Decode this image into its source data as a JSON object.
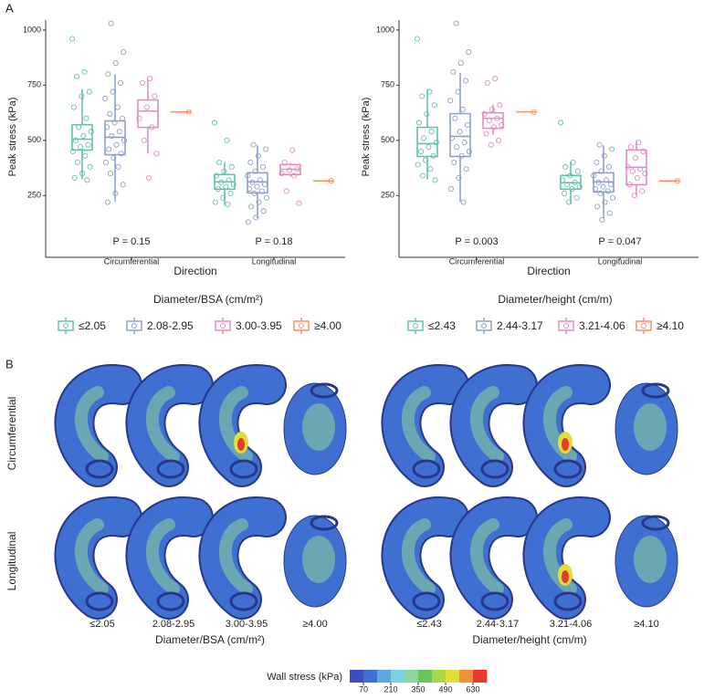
{
  "chart_data": [
    {
      "type": "box",
      "ylabel": "Peak stress (kPa)",
      "xlabel": "Direction",
      "legend_title": "Diameter/BSA (cm/m²)",
      "categories": [
        "Circumferential",
        "Longitudinal"
      ],
      "annotations": [
        "P = 0.15",
        "P = 0.18"
      ],
      "ylim": [
        -30,
        1045
      ],
      "yticks": [
        250,
        500,
        750,
        1000
      ],
      "series": [
        {
          "name": "≤2.05",
          "color": "#66c2a5",
          "boxes": [
            [
              324,
              456,
              505,
              571,
              732
            ],
            [
              205,
              279,
              312,
              345,
              402
            ]
          ],
          "points": [
            [
              960,
              810,
              790,
              720,
              700,
              650,
              600,
              560,
              540,
              520,
              500,
              480,
              470,
              450,
              430,
              400,
              380,
              350,
              330,
              320
            ],
            [
              580,
              500,
              400,
              380,
              360,
              340,
              320,
              310,
              300,
              290,
              280,
              260,
              240,
              220,
              210
            ]
          ]
        },
        {
          "name": "2.08-2.95",
          "color": "#8da0cb",
          "boxes": [
            [
              221,
              435,
              514,
              588,
              798
            ],
            [
              147,
              262,
              312,
              353,
              477
            ]
          ],
          "points": [
            [
              1030,
              900,
              850,
              800,
              760,
              720,
              690,
              650,
              620,
              600,
              580,
              560,
              540,
              520,
              500,
              480,
              460,
              440,
              420,
              400,
              380,
              350,
              300,
              260,
              220
            ],
            [
              480,
              460,
              430,
              400,
              380,
              360,
              340,
              320,
              310,
              300,
              290,
              280,
              270,
              260,
              240,
              220,
              200,
              180,
              150,
              130
            ]
          ]
        },
        {
          "name": "3.00-3.95",
          "color": "#e78ac3",
          "boxes": [
            [
              440,
              559,
              633,
              683,
              777
            ],
            [
              337,
              345,
              369,
              390,
              398
            ]
          ],
          "points": [
            [
              780,
              760,
              700,
              650,
              600,
              560,
              500,
              440,
              330
            ],
            [
              455,
              400,
              370,
              365,
              350,
              340,
              270,
              215
            ]
          ]
        },
        {
          "name": "≥4.00",
          "color": "#fc8d62",
          "boxes": [
            [
              629,
              629,
              629,
              629,
              629
            ],
            [
              316,
              316,
              316,
              316,
              316
            ]
          ],
          "points": [
            [
              629
            ],
            [
              316
            ]
          ]
        }
      ]
    },
    {
      "type": "box",
      "ylabel": "Peak stress (kPa)",
      "xlabel": "Direction",
      "legend_title": "Diameter/height (cm/m)",
      "categories": [
        "Circumferential",
        "Longitudinal"
      ],
      "annotations": [
        "P = 0.003",
        "P = 0.047"
      ],
      "ylim": [
        -30,
        1045
      ],
      "yticks": [
        250,
        500,
        750,
        1000
      ],
      "series": [
        {
          "name": "≤2.43",
          "color": "#66c2a5",
          "boxes": [
            [
              324,
              427,
              485,
              559,
              732
            ],
            [
              213,
              279,
              308,
              341,
              402
            ]
          ],
          "points": [
            [
              960,
              720,
              700,
              660,
              620,
              580,
              540,
              510,
              490,
              470,
              450,
              430,
              410,
              390,
              370,
              340,
              320
            ],
            [
              580,
              400,
              380,
              360,
              340,
              320,
              310,
              300,
              290,
              280,
              260,
              240,
              220
            ]
          ]
        },
        {
          "name": "2.44-3.17",
          "color": "#8da0cb",
          "boxes": [
            [
              221,
              427,
              518,
              621,
              806
            ],
            [
              147,
              266,
              312,
              353,
              477
            ]
          ],
          "points": [
            [
              1030,
              900,
              850,
              810,
              770,
              720,
              680,
              640,
              600,
              570,
              540,
              510,
              490,
              470,
              450,
              430,
              400,
              370,
              330,
              280,
              220
            ],
            [
              480,
              460,
              430,
              400,
              380,
              360,
              340,
              320,
              310,
              300,
              290,
              280,
              270,
              260,
              240,
              220,
              200,
              170,
              140
            ]
          ]
        },
        {
          "name": "3.21-4.06",
          "color": "#e78ac3",
          "boxes": [
            [
              526,
              555,
              600,
              625,
              662
            ],
            [
              250,
              299,
              378,
              456,
              497
            ]
          ],
          "points": [
            [
              780,
              760,
              660,
              640,
              620,
              600,
              590,
              570,
              560,
              530,
              500,
              480
            ],
            [
              490,
              470,
              450,
              420,
              380,
              370,
              360,
              350,
              330,
              300,
              270,
              250
            ]
          ]
        },
        {
          "name": "≥4.10",
          "color": "#fc8d62",
          "boxes": [
            [
              629,
              629,
              629,
              629,
              629
            ],
            [
              316,
              316,
              316,
              316,
              316
            ]
          ],
          "points": [
            [
              629
            ],
            [
              316
            ]
          ]
        }
      ]
    }
  ],
  "panel_labels": [
    "A",
    "B"
  ],
  "panel_b": {
    "row_labels": [
      "Circumferential",
      "Longitudinal"
    ],
    "colorbar": {
      "title": "Wall stress (kPa)",
      "lim": [
        0,
        700
      ],
      "ticks": [
        70,
        210,
        350,
        490,
        630
      ],
      "colors": [
        "#3a4fc4",
        "#3f6fd0",
        "#5aa9e0",
        "#7ad3e0",
        "#8fd49a",
        "#6bc45a",
        "#a8d84a",
        "#e3dd3a",
        "#f0923a",
        "#e83a2e"
      ]
    }
  }
}
